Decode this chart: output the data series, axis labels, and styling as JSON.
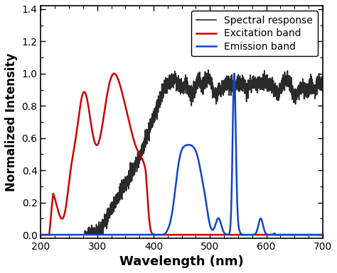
{
  "title": "",
  "xlabel": "Wavelength (nm)",
  "ylabel": "Normalized Intensity",
  "xlim": [
    200,
    700
  ],
  "ylim": [
    -0.02,
    1.42
  ],
  "yticks": [
    0.0,
    0.2,
    0.4,
    0.6,
    0.8,
    1.0,
    1.2,
    1.4
  ],
  "xticks": [
    200,
    300,
    400,
    500,
    600,
    700
  ],
  "legend": [
    {
      "label": "Spectral response",
      "color": "#2a2a2a",
      "lw": 1.2
    },
    {
      "label": "Excitation band",
      "color": "#cc0000",
      "lw": 1.8
    },
    {
      "label": "Emission band",
      "color": "#1144cc",
      "lw": 1.8
    }
  ],
  "background_color": "#ffffff",
  "xlabel_fontsize": 13,
  "ylabel_fontsize": 12,
  "tick_fontsize": 10,
  "legend_fontsize": 10
}
